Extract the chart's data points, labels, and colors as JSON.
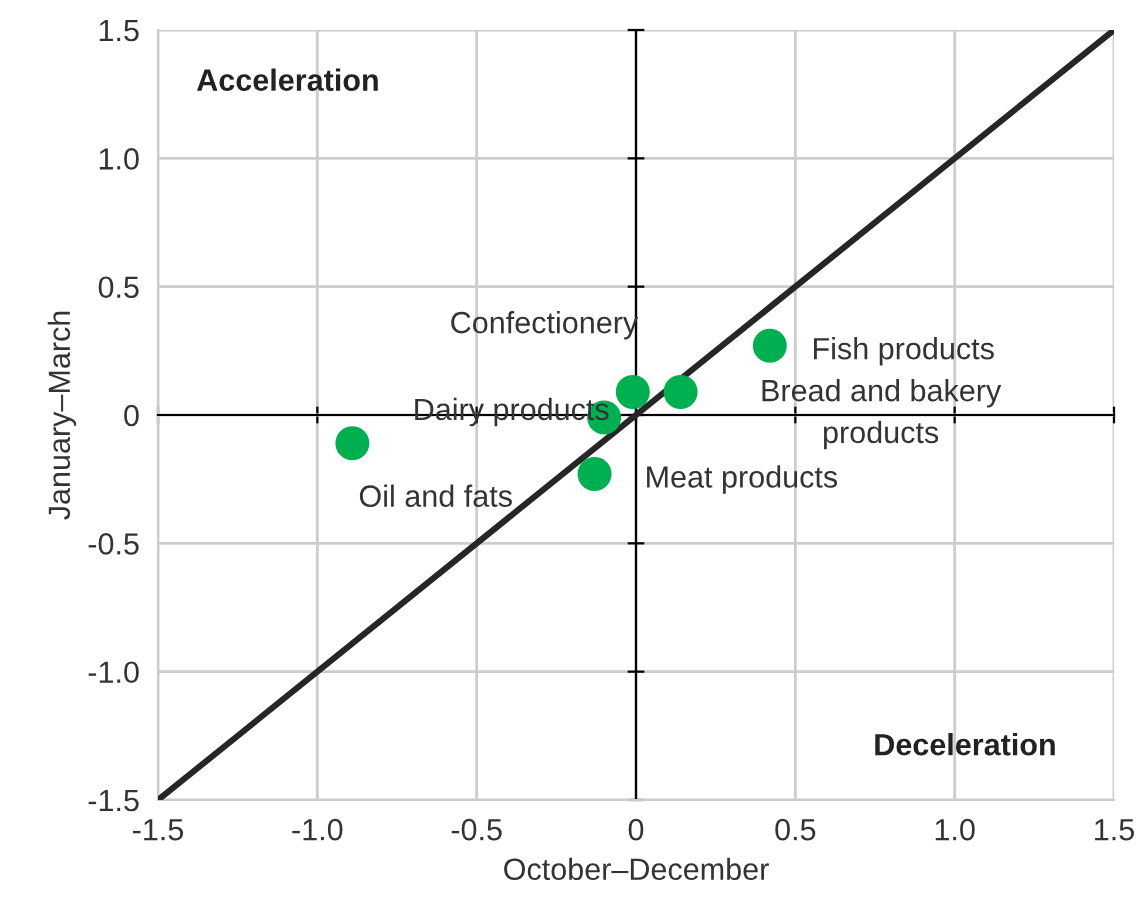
{
  "chart_data": {
    "type": "scatter",
    "xlabel": "October–December",
    "ylabel": "January–March",
    "xlim": [
      -1.5,
      1.5
    ],
    "ylim": [
      -1.5,
      1.5
    ],
    "xticks": [
      -1.5,
      {
        "value": -1.0,
        "label": "-1.0"
      },
      -0.5,
      0,
      0.5,
      {
        "value": 1.0,
        "label": "1.0"
      },
      1.5
    ],
    "yticks": [
      -1.5,
      {
        "value": -1.0,
        "label": "-1.0"
      },
      -0.5,
      0,
      0.5,
      {
        "value": 1.0,
        "label": "1.0"
      },
      1.5
    ],
    "grid": true,
    "series": [
      {
        "marker": "circle",
        "color": "#00b050",
        "x": [
          -0.89,
          -0.1,
          -0.01,
          0.14,
          0.42,
          -0.13
        ],
        "values": [
          -0.11,
          -0.01,
          0.09,
          0.09,
          0.27,
          -0.23
        ]
      },
      {
        "type": "line",
        "color": "#262626",
        "x": [
          -1.5,
          1.5
        ],
        "values": [
          -1.5,
          1.5
        ]
      }
    ],
    "annotations": [
      {
        "text": "Oil and fats",
        "x": -0.89,
        "y": -0.11
      },
      {
        "text": "Dairy products",
        "x": -0.1,
        "y": -0.01
      },
      {
        "text": "Confectionery",
        "x": -0.01,
        "y": 0.09
      },
      {
        "text": "Bread and bakery\nproducts",
        "x": 0.14,
        "y": 0.09
      },
      {
        "text": "Fish products",
        "x": 0.42,
        "y": 0.27
      },
      {
        "text": "Meat products",
        "x": -0.13,
        "y": -0.23
      },
      "Acceleration",
      "Deceleration"
    ]
  }
}
